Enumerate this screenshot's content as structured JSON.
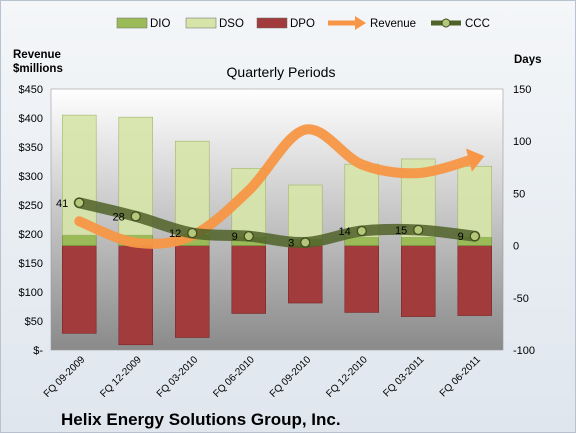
{
  "chart_data": {
    "type": "bar",
    "title": "Quarterly Periods",
    "company": "Helix Energy Solutions Group, Inc.",
    "left_axis_title": [
      "Revenue",
      "$millions"
    ],
    "right_axis_title": "Days",
    "categories": [
      "FQ 09-2009",
      "FQ 12-2009",
      "FQ 03-2010",
      "FQ 06-2010",
      "FQ 09-2010",
      "FQ 12-2010",
      "FQ 03-2011",
      "FQ 06-2011"
    ],
    "left_ylim": [
      0,
      450
    ],
    "left_ticks": [
      "$-",
      "$50",
      "$100",
      "$150",
      "$200",
      "$250",
      "$300",
      "$350",
      "$400",
      "$450"
    ],
    "right_ylim": [
      -100,
      150
    ],
    "right_ticks": [
      "-100",
      "-50",
      "0",
      "50",
      "100",
      "150"
    ],
    "legend": [
      "DIO",
      "DSO",
      "DPO",
      "Revenue",
      "CCC"
    ],
    "legend_position": "top",
    "colors": {
      "dio": "#9bbb59",
      "dso": "#d7e4a9",
      "dpo": "#a23b3c",
      "revenue": "#f79646",
      "ccc": "#4f6228"
    },
    "series": [
      {
        "name": "DIO",
        "axis": "right",
        "values": [
          10,
          10,
          10,
          8,
          6,
          8,
          8,
          8
        ]
      },
      {
        "name": "DSO",
        "axis": "right",
        "values": [
          115,
          113,
          90,
          66,
          52,
          70,
          75,
          68
        ]
      },
      {
        "name": "DPO",
        "axis": "right",
        "values": [
          -84,
          -95,
          -88,
          -65,
          -55,
          -64,
          -68,
          -67
        ]
      },
      {
        "name": "Revenue",
        "axis": "left",
        "values": [
          222,
          185,
          197,
          275,
          380,
          320,
          305,
          330
        ]
      },
      {
        "name": "CCC",
        "axis": "right",
        "values": [
          41,
          28,
          12,
          9,
          3,
          14,
          15,
          9
        ]
      }
    ],
    "ccc_labels": [
      "41",
      "28",
      "12",
      "9",
      "3",
      "14",
      "15",
      "9"
    ],
    "grid": false
  }
}
